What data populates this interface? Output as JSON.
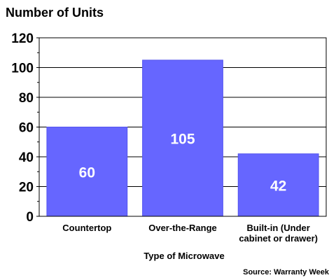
{
  "chart_data": {
    "type": "bar",
    "title": "Number of Units",
    "xlabel": "Type of Microwave",
    "ylabel": "",
    "categories": [
      [
        "Countertop"
      ],
      [
        "Over-the-Range"
      ],
      [
        "Built-in (Under",
        "cabinet or drawer)"
      ]
    ],
    "values": [
      60,
      105,
      42
    ],
    "data_labels": [
      "60",
      "105",
      "42"
    ],
    "ylim": [
      0,
      120
    ],
    "y_ticks": [
      0,
      20,
      40,
      60,
      80,
      100,
      120
    ],
    "y_tick_labels": [
      "0",
      "20",
      "40",
      "60",
      "80",
      "100",
      "120"
    ],
    "grid": true,
    "legend": "none",
    "source": "Source: Warranty Week",
    "colors": {
      "bar": "#6666ff",
      "grid": "#000000",
      "axis": "#000000",
      "data_label": "#ffffff"
    }
  }
}
